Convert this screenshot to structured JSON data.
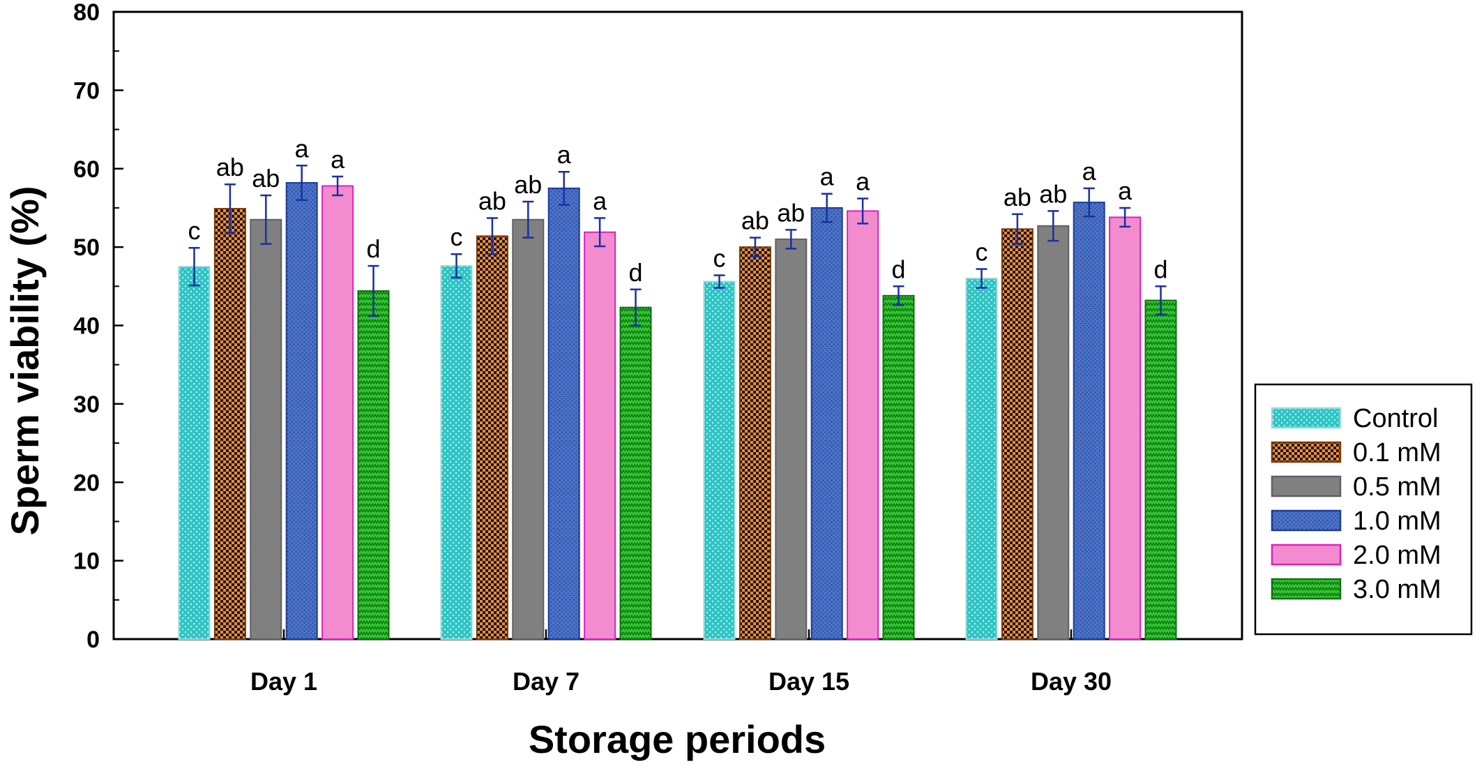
{
  "chart_data": {
    "type": "bar",
    "xlabel": "Storage periods",
    "ylabel": "Sperm viability (%)",
    "ylim": [
      0,
      80
    ],
    "yticks": [
      "0",
      "10",
      "20",
      "30",
      "40",
      "50",
      "60",
      "70",
      "80"
    ],
    "categories": [
      "Day 1",
      "Day 7",
      "Day 15",
      "Day 30"
    ],
    "legend_position": "right",
    "series": [
      {
        "name": "Control",
        "color": "#2ec4c4",
        "pattern": "dots-light",
        "values": [
          47.5,
          47.6,
          45.6,
          46.0
        ],
        "errors": [
          2.4,
          1.5,
          0.8,
          1.2
        ],
        "sig": [
          "c",
          "c",
          "c",
          "c"
        ]
      },
      {
        "name": "0.1 mM",
        "color": "#f08a3c",
        "pattern": "checker",
        "values": [
          54.9,
          51.4,
          50.0,
          52.3
        ],
        "errors": [
          3.1,
          2.3,
          1.2,
          1.9
        ],
        "sig": [
          "ab",
          "ab",
          "ab",
          "ab"
        ]
      },
      {
        "name": "0.5 mM",
        "color": "#808080",
        "pattern": "solid",
        "values": [
          53.5,
          53.5,
          51.0,
          52.7
        ],
        "errors": [
          3.1,
          2.3,
          1.2,
          1.9
        ],
        "sig": [
          "ab",
          "ab",
          "ab",
          "ab"
        ]
      },
      {
        "name": "1.0 mM",
        "color": "#4a72c8",
        "pattern": "dots-dark",
        "values": [
          58.2,
          57.5,
          55.0,
          55.7
        ],
        "errors": [
          2.2,
          2.1,
          1.8,
          1.8
        ],
        "sig": [
          "a",
          "a",
          "a",
          "a"
        ]
      },
      {
        "name": "2.0 mM",
        "color": "#f28ccf",
        "pattern": "solid",
        "values": [
          57.8,
          51.9,
          54.6,
          53.8
        ],
        "errors": [
          1.2,
          1.8,
          1.6,
          1.2
        ],
        "sig": [
          "a",
          "a",
          "a",
          "a"
        ]
      },
      {
        "name": "3.0 mM",
        "color": "#2fc52f",
        "pattern": "zigzag",
        "values": [
          44.4,
          42.3,
          43.8,
          43.2
        ],
        "errors": [
          3.2,
          2.3,
          1.2,
          1.8
        ],
        "sig": [
          "d",
          "d",
          "d",
          "d"
        ]
      }
    ]
  }
}
